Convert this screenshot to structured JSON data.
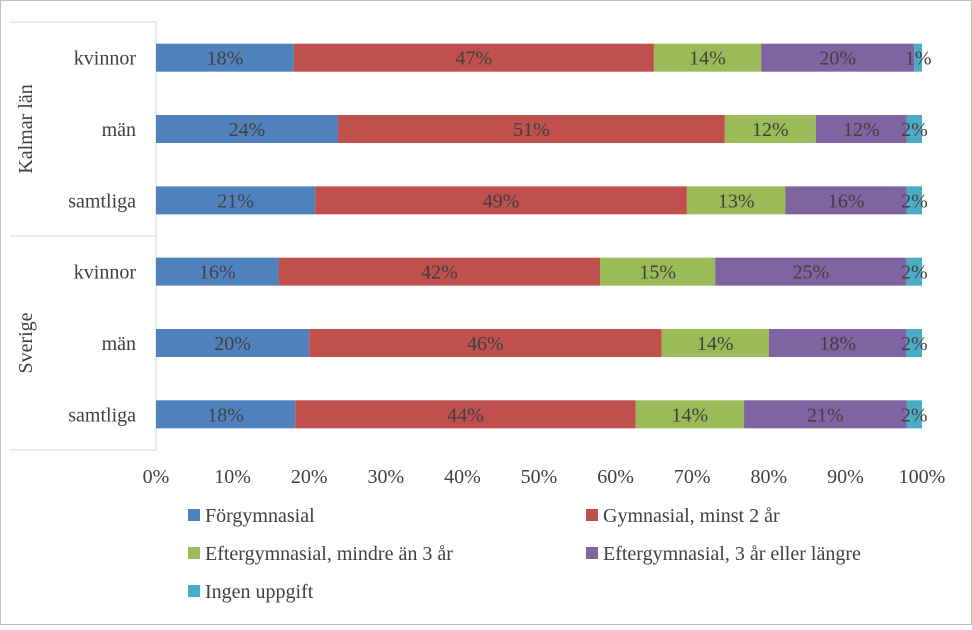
{
  "chart_data": {
    "type": "bar",
    "orientation": "horizontal-stacked-100",
    "groups": [
      {
        "name": "Kalmar län",
        "categories": [
          "kvinnor",
          "män",
          "samtliga"
        ]
      },
      {
        "name": "Sverige",
        "categories": [
          "kvinnor",
          "män",
          "samtliga"
        ]
      }
    ],
    "series": [
      {
        "name": "Förgymnasial",
        "color": "#4f81bd",
        "values": [
          18,
          24,
          21,
          16,
          20,
          18
        ],
        "labels": [
          "18%",
          "24%",
          "21%",
          "16%",
          "20%",
          "18%"
        ]
      },
      {
        "name": "Gymnasial, minst 2 år",
        "color": "#c0504d",
        "values": [
          47,
          51,
          49,
          42,
          46,
          44
        ],
        "labels": [
          "47%",
          "51%",
          "49%",
          "42%",
          "46%",
          "44%"
        ]
      },
      {
        "name": "Eftergymnasial, mindre än 3 år",
        "color": "#9bbb59",
        "values": [
          14,
          12,
          13,
          15,
          14,
          14
        ],
        "labels": [
          "14%",
          "12%",
          "13%",
          "15%",
          "14%",
          "14%"
        ]
      },
      {
        "name": "Eftergymnasial, 3 år eller längre",
        "color": "#8064a2",
        "values": [
          20,
          12,
          16,
          25,
          18,
          21
        ],
        "labels": [
          "20%",
          "12%",
          "16%",
          "25%",
          "18%",
          "21%"
        ]
      },
      {
        "name": "Ingen uppgift",
        "color": "#4bacc6",
        "values": [
          1,
          2,
          2,
          2,
          2,
          2
        ],
        "labels": [
          "1%",
          "2%",
          "2%",
          "2%",
          "2%",
          "2%"
        ]
      }
    ],
    "x_ticks": [
      "0%",
      "10%",
      "20%",
      "30%",
      "40%",
      "50%",
      "60%",
      "70%",
      "80%",
      "90%",
      "100%"
    ],
    "xlim": [
      0,
      100
    ],
    "grid": false,
    "legend_position": "bottom",
    "title": "",
    "xlabel": "",
    "ylabel": ""
  }
}
